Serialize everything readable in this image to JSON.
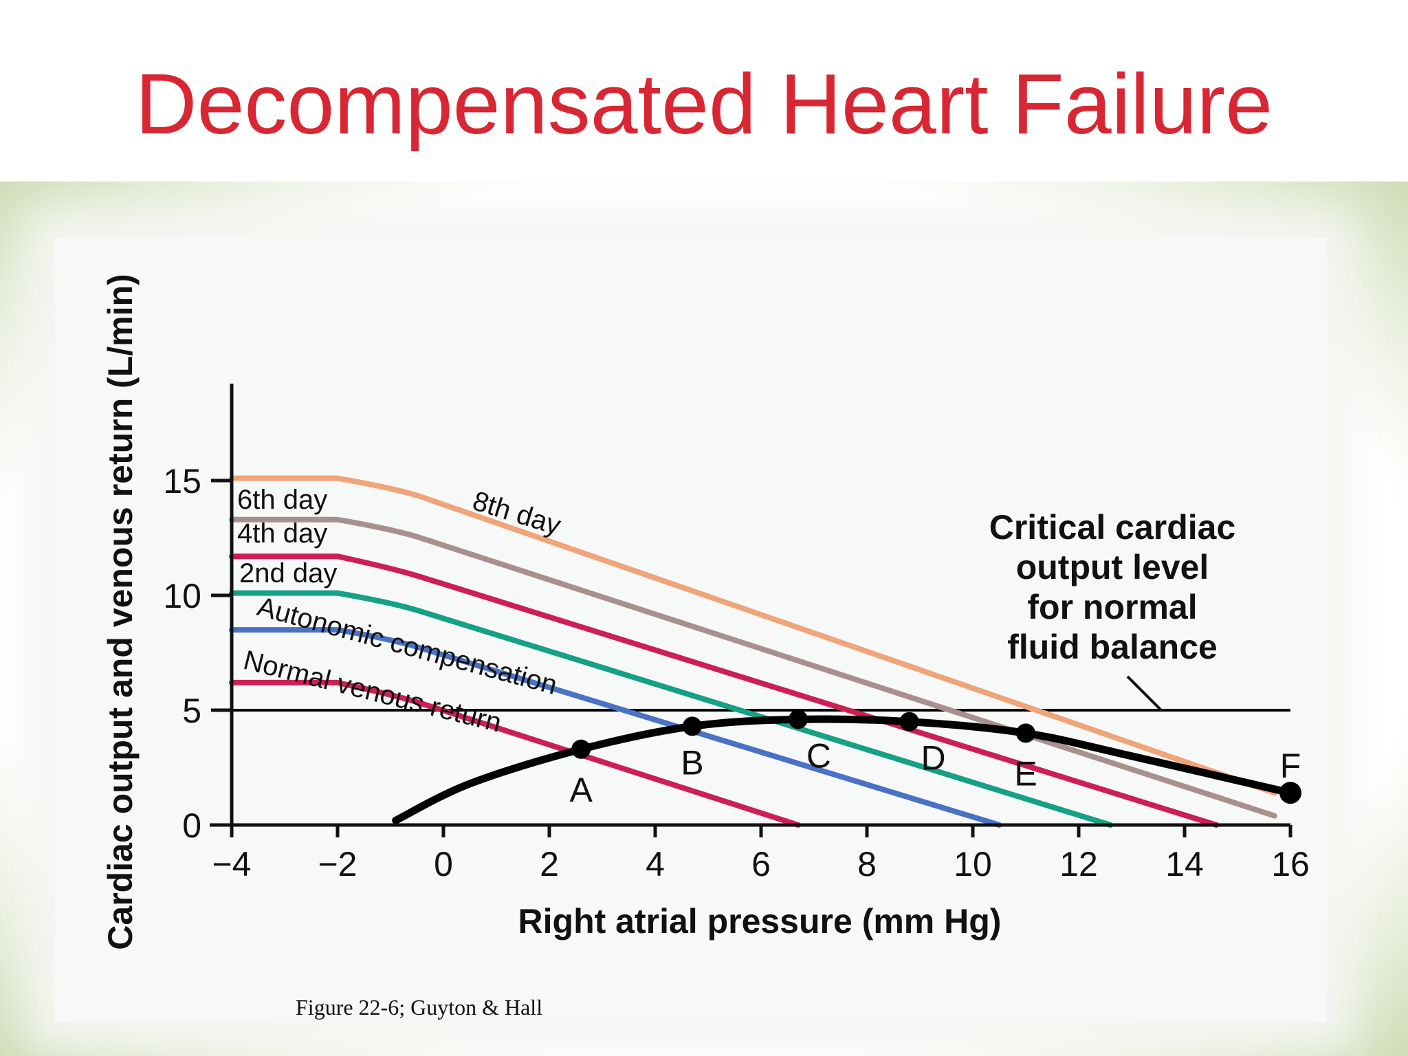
{
  "slide": {
    "title": "Decompensated Heart Failure",
    "caption": "Figure 22-6; Guyton & Hall",
    "title_color": "#d92633"
  },
  "chart_data": {
    "type": "line",
    "xlabel": "Right atrial pressure (mm Hg)",
    "ylabel": "Cardiac output and venous return (L/min)",
    "xlim": [
      -4,
      16
    ],
    "ylim": [
      0,
      19
    ],
    "x_ticks": [
      -4,
      -2,
      0,
      2,
      4,
      6,
      8,
      10,
      12,
      14,
      16
    ],
    "x_tick_labels": [
      "−4",
      "−2",
      "0",
      "2",
      "4",
      "6",
      "8",
      "10",
      "12",
      "14",
      "16"
    ],
    "y_ticks": [
      0,
      5,
      10,
      15
    ],
    "y_tick_labels": [
      "0",
      "5",
      "10",
      "15"
    ],
    "grid": false,
    "series": [
      {
        "name": "Normal venous return",
        "color": "#cc1f55",
        "x": [
          -4,
          -2,
          -1,
          6.7
        ],
        "y": [
          6.2,
          6.2,
          5.7,
          0
        ]
      },
      {
        "name": "Autonomic compensation",
        "color": "#4a72c4",
        "x": [
          -4,
          -2,
          -1,
          10.5
        ],
        "y": [
          8.5,
          8.5,
          8.1,
          0
        ]
      },
      {
        "name": "2nd day",
        "color": "#16a086",
        "x": [
          -4,
          -2,
          -1,
          12.6
        ],
        "y": [
          10.1,
          10.1,
          9.7,
          0
        ]
      },
      {
        "name": "4th day",
        "color": "#cc1f55",
        "x": [
          -4,
          -2,
          -1,
          14.6
        ],
        "y": [
          11.7,
          11.7,
          11.2,
          0
        ]
      },
      {
        "name": "6th day",
        "color": "#a8908e",
        "x": [
          -4,
          -2,
          -1,
          15.7
        ],
        "y": [
          13.3,
          13.3,
          12.9,
          0.4
        ]
      },
      {
        "name": "8th day",
        "color": "#f0a47a",
        "x": [
          -4,
          -2,
          -1,
          15.7
        ],
        "y": [
          15.1,
          15.1,
          14.7,
          1.4
        ]
      },
      {
        "name": "",
        "color": "#000000",
        "x": [
          -0.9,
          0.5,
          2.6,
          4.7,
          6.7,
          8.8,
          11,
          13,
          16
        ],
        "y": [
          0.2,
          1.8,
          3.3,
          4.3,
          4.6,
          4.5,
          4.0,
          3.0,
          1.4
        ]
      }
    ],
    "points": [
      {
        "label": "A",
        "x": 2.6,
        "y": 3.3
      },
      {
        "label": "B",
        "x": 4.7,
        "y": 4.3
      },
      {
        "label": "C",
        "x": 6.7,
        "y": 4.6
      },
      {
        "label": "D",
        "x": 8.8,
        "y": 4.5
      },
      {
        "label": "E",
        "x": 11,
        "y": 4.0
      },
      {
        "label": "F",
        "x": 16,
        "y": 1.4
      }
    ],
    "reference_line": {
      "y": 5,
      "color": "#000000"
    },
    "annotation": [
      "Critical cardiac",
      "output level",
      "for normal",
      "fluid balance"
    ]
  }
}
